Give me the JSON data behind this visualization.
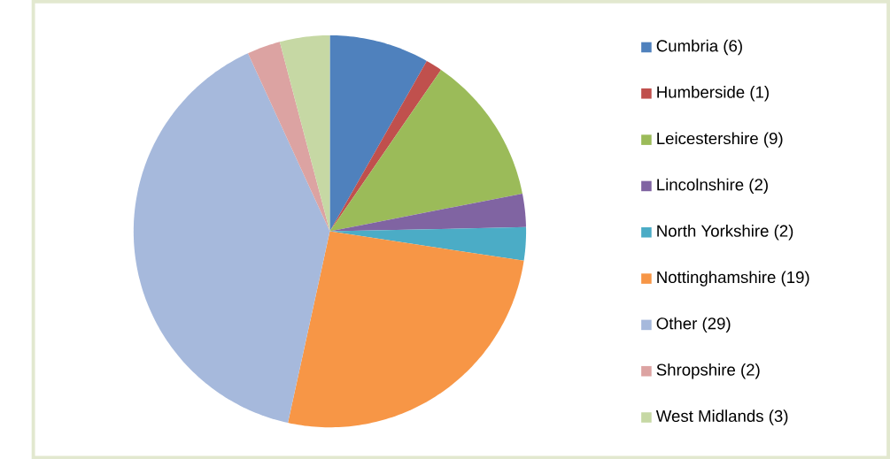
{
  "chart_data": {
    "type": "pie",
    "categories": [
      "Cumbria (6)",
      "Humberside (1)",
      "Leicestershire (9)",
      "Lincolnshire (2)",
      "North Yorkshire (2)",
      "Nottinghamshire (19)",
      "Other (29)",
      "Shropshire (2)",
      "West Midlands (3)"
    ],
    "values": [
      6,
      1,
      9,
      2,
      2,
      19,
      29,
      2,
      3
    ],
    "colors": [
      "#4f81bd",
      "#c0504d",
      "#9bbb59",
      "#8064a2",
      "#4bacc6",
      "#f79646",
      "#a6b9dc",
      "#dca3a2",
      "#c6d8a4"
    ],
    "legend": "right"
  }
}
